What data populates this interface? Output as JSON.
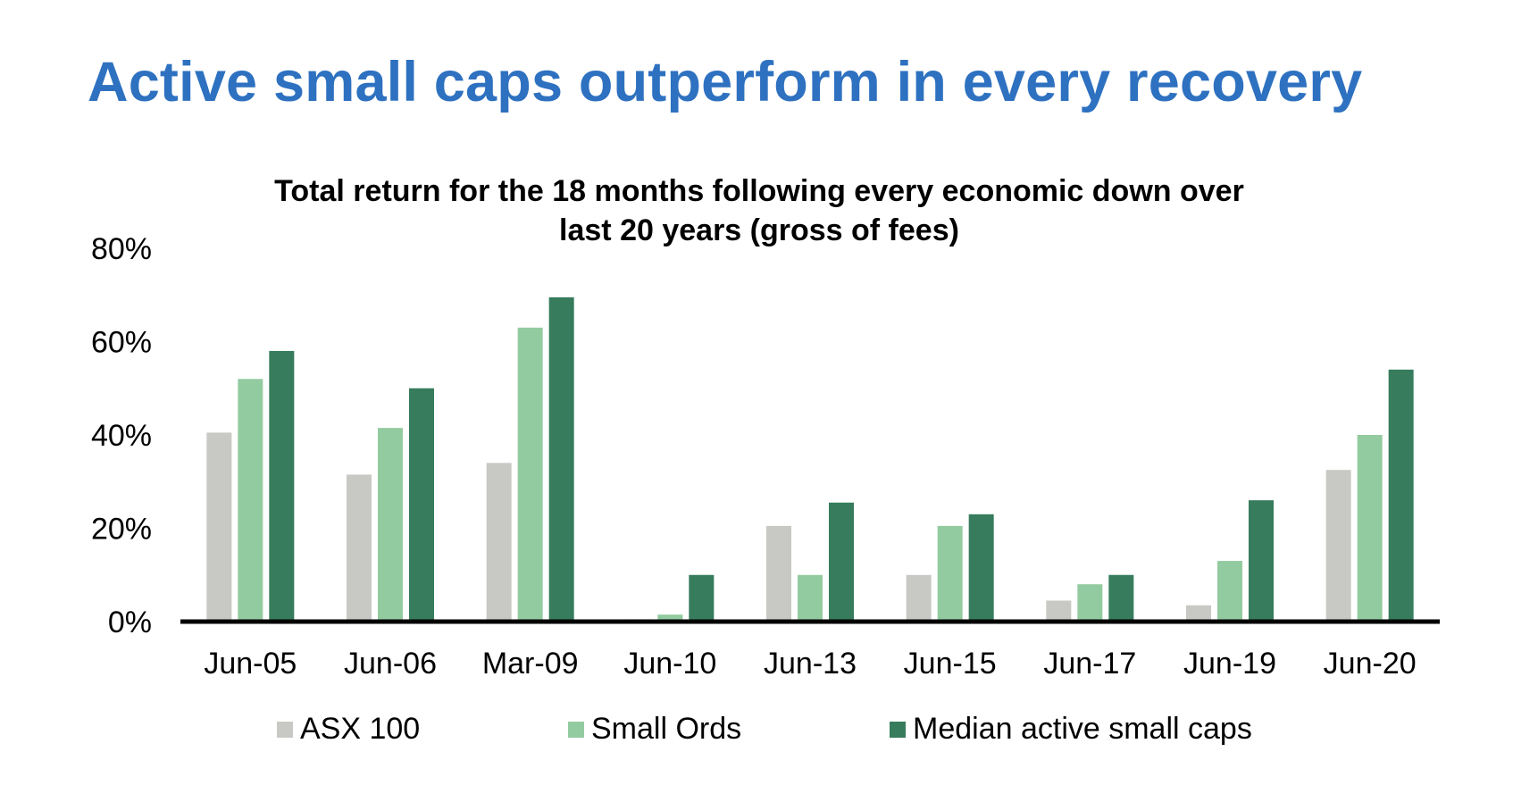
{
  "headline": "Active small caps outperform in every recovery",
  "chart_data": {
    "type": "bar",
    "title_lines": [
      "Total return for the 18 months following every economic down over",
      "last 20 years (gross of fees)"
    ],
    "categories": [
      "Jun-05",
      "Jun-06",
      "Mar-09",
      "Jun-10",
      "Jun-13",
      "Jun-15",
      "Jun-17",
      "Jun-19",
      "Jun-20"
    ],
    "series": [
      {
        "name": "ASX 100",
        "color": "#c8c9c4",
        "values": [
          40.5,
          31.5,
          34,
          0.5,
          20.5,
          10,
          4.5,
          3.5,
          32.5
        ]
      },
      {
        "name": "Small Ords",
        "color": "#93cba0",
        "values": [
          52,
          41.5,
          63,
          1.5,
          10,
          20.5,
          8,
          13,
          40
        ]
      },
      {
        "name": "Median active small caps",
        "color": "#367c5d",
        "values": [
          58,
          50,
          69.5,
          10,
          25.5,
          23,
          10,
          26,
          54
        ]
      }
    ],
    "yticks": [
      "0%",
      "20%",
      "40%",
      "60%",
      "80%"
    ],
    "ylim": [
      0,
      80
    ],
    "xlabel": "",
    "ylabel": "",
    "grid": false,
    "legend_position": "bottom"
  }
}
